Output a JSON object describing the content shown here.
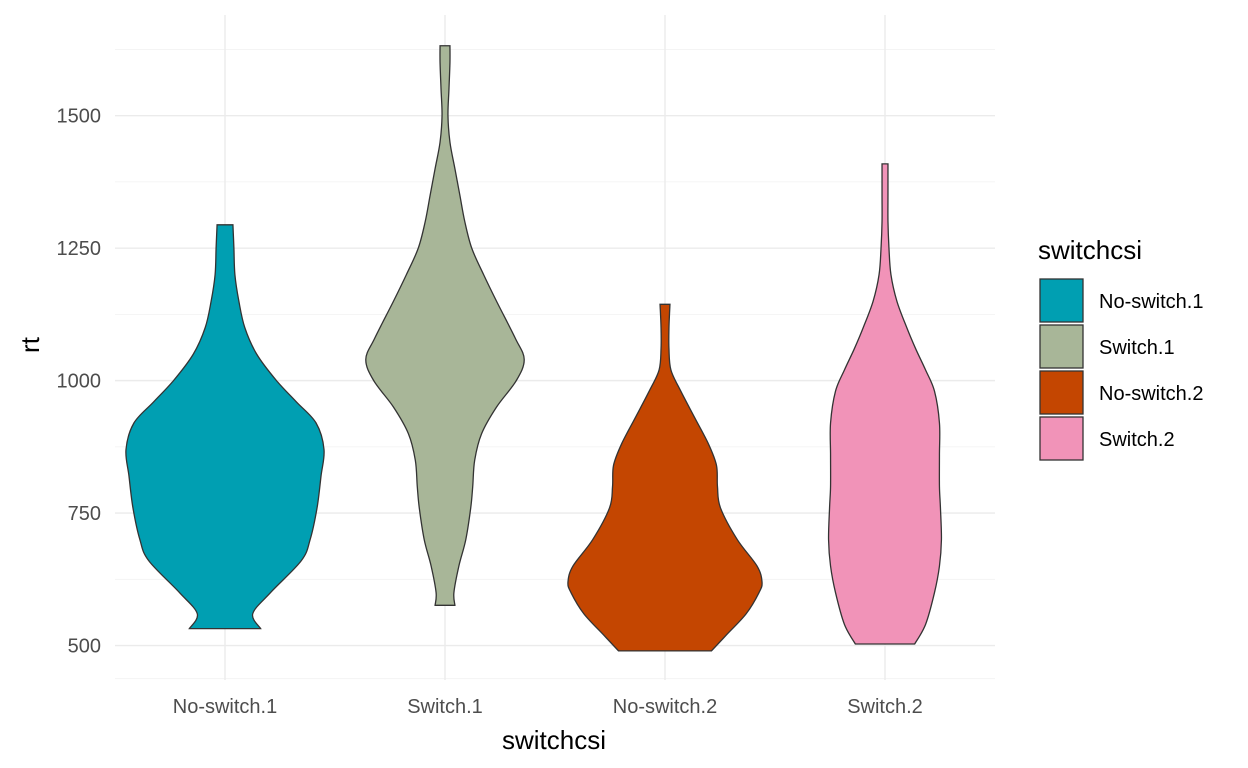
{
  "chart_data": {
    "type": "violin",
    "title": "",
    "xlabel": "switchcsi",
    "ylabel": "rt",
    "categories": [
      "No-switch.1",
      "Switch.1",
      "No-switch.2",
      "Switch.2"
    ],
    "ylim": [
      435,
      1690
    ],
    "yticks": [
      500,
      750,
      1000,
      1250,
      1500
    ],
    "ytick_labels": [
      "500",
      "750",
      "1000",
      "1250",
      "1500"
    ],
    "grid": true,
    "legend": {
      "title": "switchcsi",
      "position": "right",
      "entries": [
        "No-switch.1",
        "Switch.1",
        "No-switch.2",
        "Switch.2"
      ]
    },
    "series": [
      {
        "name": "No-switch.1",
        "color": "#009FB2",
        "profile": [
          [
            532,
            0.36
          ],
          [
            560,
            0.28
          ],
          [
            600,
            0.46
          ],
          [
            660,
            0.77
          ],
          [
            700,
            0.86
          ],
          [
            760,
            0.93
          ],
          [
            820,
            0.97
          ],
          [
            870,
            1.0
          ],
          [
            920,
            0.92
          ],
          [
            960,
            0.72
          ],
          [
            1000,
            0.52
          ],
          [
            1050,
            0.32
          ],
          [
            1100,
            0.2
          ],
          [
            1150,
            0.14
          ],
          [
            1200,
            0.1
          ],
          [
            1250,
            0.09
          ],
          [
            1294,
            0.08
          ]
        ]
      },
      {
        "name": "Switch.1",
        "color": "#A8B698",
        "profile": [
          [
            576,
            0.1
          ],
          [
            600,
            0.09
          ],
          [
            650,
            0.14
          ],
          [
            700,
            0.21
          ],
          [
            760,
            0.26
          ],
          [
            800,
            0.28
          ],
          [
            850,
            0.3
          ],
          [
            900,
            0.37
          ],
          [
            950,
            0.52
          ],
          [
            1000,
            0.72
          ],
          [
            1040,
            0.8
          ],
          [
            1080,
            0.71
          ],
          [
            1150,
            0.52
          ],
          [
            1200,
            0.39
          ],
          [
            1250,
            0.27
          ],
          [
            1300,
            0.2
          ],
          [
            1350,
            0.15
          ],
          [
            1400,
            0.1
          ],
          [
            1450,
            0.05
          ],
          [
            1500,
            0.03
          ],
          [
            1550,
            0.04
          ],
          [
            1600,
            0.05
          ],
          [
            1632,
            0.05
          ]
        ]
      },
      {
        "name": "No-switch.2",
        "color": "#C44601",
        "profile": [
          [
            490,
            0.47
          ],
          [
            520,
            0.62
          ],
          [
            560,
            0.82
          ],
          [
            600,
            0.95
          ],
          [
            620,
            0.98
          ],
          [
            650,
            0.93
          ],
          [
            700,
            0.73
          ],
          [
            760,
            0.56
          ],
          [
            800,
            0.53
          ],
          [
            840,
            0.52
          ],
          [
            880,
            0.44
          ],
          [
            930,
            0.3
          ],
          [
            980,
            0.16
          ],
          [
            1020,
            0.06
          ],
          [
            1060,
            0.04
          ],
          [
            1100,
            0.04
          ],
          [
            1144,
            0.05
          ]
        ]
      },
      {
        "name": "Switch.2",
        "color": "#F193B8",
        "profile": [
          [
            503,
            0.3
          ],
          [
            540,
            0.41
          ],
          [
            600,
            0.5
          ],
          [
            650,
            0.55
          ],
          [
            700,
            0.57
          ],
          [
            760,
            0.56
          ],
          [
            800,
            0.55
          ],
          [
            860,
            0.55
          ],
          [
            920,
            0.55
          ],
          [
            980,
            0.5
          ],
          [
            1020,
            0.41
          ],
          [
            1060,
            0.31
          ],
          [
            1100,
            0.22
          ],
          [
            1150,
            0.12
          ],
          [
            1200,
            0.06
          ],
          [
            1250,
            0.04
          ],
          [
            1300,
            0.03
          ],
          [
            1350,
            0.03
          ],
          [
            1409,
            0.03
          ]
        ]
      }
    ]
  }
}
